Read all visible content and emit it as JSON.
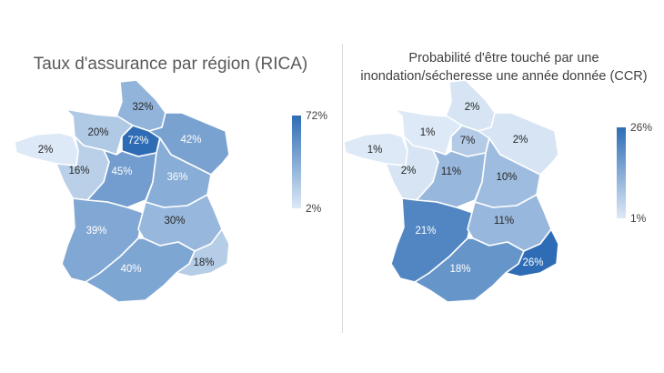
{
  "colors": {
    "min": "#dde9f6",
    "max": "#2e6db5"
  },
  "chart_data": [
    {
      "type": "choropleth",
      "title": "Taux d'assurance par région (RICA)",
      "legend": {
        "max_label": "72%",
        "min_label": "2%",
        "min": 2,
        "max": 72
      },
      "regions": [
        {
          "id": "hauts-de-france",
          "value": 32,
          "label": "32%"
        },
        {
          "id": "normandie",
          "value": 20,
          "label": "20%"
        },
        {
          "id": "ile-de-france",
          "value": 72,
          "label": "72%"
        },
        {
          "id": "grand-est",
          "value": 42,
          "label": "42%"
        },
        {
          "id": "bretagne",
          "value": 2,
          "label": "2%"
        },
        {
          "id": "pays-de-la-loire",
          "value": 16,
          "label": "16%"
        },
        {
          "id": "centre-val-de-loire",
          "value": 45,
          "label": "45%"
        },
        {
          "id": "bourgogne-franche-comte",
          "value": 36,
          "label": "36%"
        },
        {
          "id": "nouvelle-aquitaine",
          "value": 39,
          "label": "39%"
        },
        {
          "id": "auvergne-rhone-alpes",
          "value": 30,
          "label": "30%"
        },
        {
          "id": "occitanie",
          "value": 40,
          "label": "40%"
        },
        {
          "id": "provence-alpes-cote-dazur",
          "value": 18,
          "label": "18%"
        }
      ]
    },
    {
      "type": "choropleth",
      "title": "Probabilité d'être touché par une inondation/sécheresse une année donnée (CCR)",
      "title_lines": [
        "Probabilité d'être touché par une",
        "inondation/sécheresse une année donnée (CCR)"
      ],
      "legend": {
        "max_label": "26%",
        "min_label": "1%",
        "min": 1,
        "max": 26
      },
      "regions": [
        {
          "id": "hauts-de-france",
          "value": 2,
          "label": "2%"
        },
        {
          "id": "normandie",
          "value": 1,
          "label": "1%"
        },
        {
          "id": "ile-de-france",
          "value": 7,
          "label": "7%"
        },
        {
          "id": "grand-est",
          "value": 2,
          "label": "2%"
        },
        {
          "id": "bretagne",
          "value": 1,
          "label": "1%"
        },
        {
          "id": "pays-de-la-loire",
          "value": 2,
          "label": "2%"
        },
        {
          "id": "centre-val-de-loire",
          "value": 11,
          "label": "11%"
        },
        {
          "id": "bourgogne-franche-comte",
          "value": 10,
          "label": "10%"
        },
        {
          "id": "nouvelle-aquitaine",
          "value": 21,
          "label": "21%"
        },
        {
          "id": "auvergne-rhone-alpes",
          "value": 11,
          "label": "11%"
        },
        {
          "id": "occitanie",
          "value": 18,
          "label": "18%"
        },
        {
          "id": "provence-alpes-cote-dazur",
          "value": 26,
          "label": "26%"
        }
      ]
    }
  ]
}
